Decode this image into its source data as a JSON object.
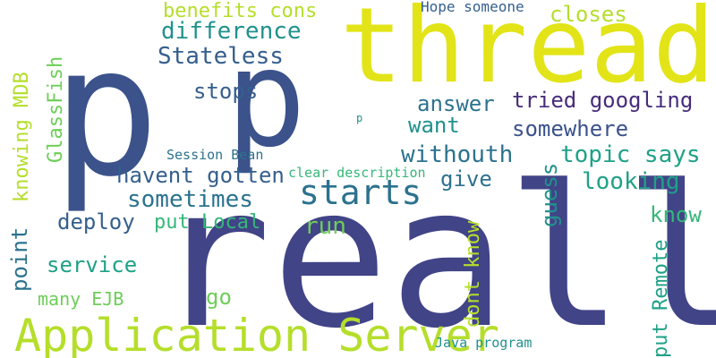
{
  "palette": {
    "background": "#ffffff",
    "dark_blue": "#3b528b",
    "indigo": "#414487",
    "purple": "#472c7a",
    "slate": "#355f8d",
    "steel": "#2c728e",
    "teal": "#21918c",
    "sea_green": "#1fa187",
    "green": "#35b779",
    "lime": "#6ece58",
    "yellow_green": "#b5de2b",
    "yellow": "#e2e418"
  },
  "words": {
    "thread": "thread",
    "p_left": "p",
    "p_right": "p",
    "really": "really",
    "application_server": "Application Server",
    "starts": "starts",
    "benefits_cons": "benefits cons",
    "hope_someone": "Hope someone",
    "closes": "closes",
    "difference": "difference",
    "stateless": "Stateless",
    "stops": "stops",
    "answer": "answer",
    "tried_googling": "tried googling",
    "want": "want",
    "somewhere": "somewhere",
    "withouth": "withouth",
    "topic_says": "topic says",
    "session_bean": "Session Bean",
    "havent_gotten": "havent gotten",
    "clear_description": "clear description",
    "give": "give",
    "looking": "looking",
    "sometimes": "sometimes",
    "know": "know",
    "deploy": "deploy",
    "put_local": "put Local",
    "run": "run",
    "service": "service",
    "go": "go",
    "many_ejb": "many EJB",
    "java_program": "Java program",
    "p_small": "p",
    "glassfish": "GlassFish",
    "knowing_mdb": "knowing MDB",
    "point": "point",
    "guess": "guess",
    "dont_know": "dont know",
    "put_remote": "put Remote"
  }
}
